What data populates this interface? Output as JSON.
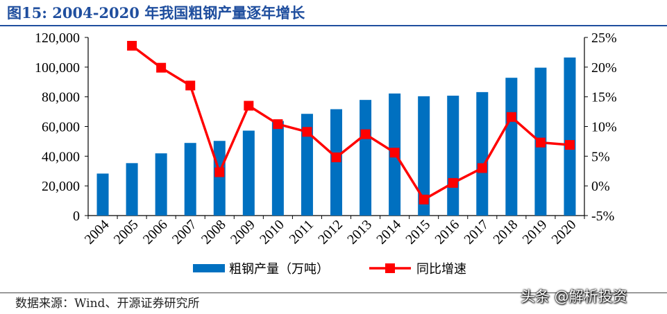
{
  "title": "图15:  2004-2020 年我国粗钢产量逐年增长",
  "source": "数据来源：Wind、开源证券研究所",
  "watermark": "头条 @解析投资",
  "colors": {
    "bar": "#0070c0",
    "line": "#ff0000",
    "title": "#1f4e9e"
  },
  "chart_data": {
    "type": "bar",
    "categories": [
      "2004",
      "2005",
      "2006",
      "2007",
      "2008",
      "2009",
      "2010",
      "2011",
      "2012",
      "2013",
      "2014",
      "2015",
      "2016",
      "2017",
      "2018",
      "2019",
      "2020"
    ],
    "series": [
      {
        "name": "粗钢产量（万吨）",
        "type": "bar",
        "axis": "left",
        "values": [
          28291,
          35324,
          41915,
          48929,
          50306,
          57218,
          63723,
          68528,
          71654,
          77904,
          82231,
          80383,
          80761,
          83173,
          92826,
          99634,
          106477
        ]
      },
      {
        "name": "同比增速",
        "type": "line",
        "axis": "right",
        "marker": "square",
        "values": [
          null,
          23.6,
          19.9,
          16.9,
          2.3,
          13.5,
          10.4,
          9.1,
          4.8,
          8.7,
          5.6,
          -2.3,
          0.5,
          3.0,
          11.6,
          7.3,
          6.9
        ]
      }
    ],
    "left_axis": {
      "ylim": [
        0,
        120000
      ],
      "ticks": [
        "0",
        "20,000",
        "40,000",
        "60,000",
        "80,000",
        "100,000",
        "120,000"
      ]
    },
    "right_axis": {
      "ylim": [
        -5,
        25
      ],
      "ticks": [
        "-5%",
        "0%",
        "5%",
        "10%",
        "15%",
        "20%",
        "25%"
      ]
    },
    "legend_position": "bottom",
    "grid": false
  }
}
